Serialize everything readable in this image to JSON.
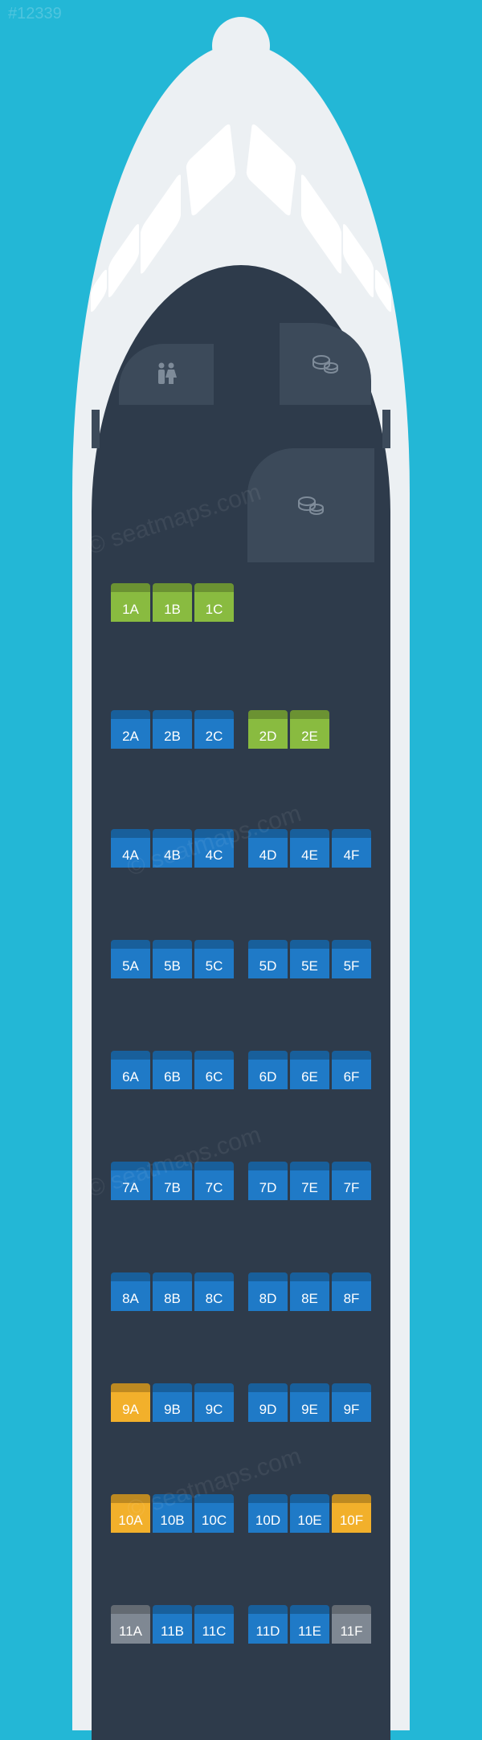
{
  "watermark_id": "#12339",
  "watermark_text": "© seatmaps.com",
  "seat_colors": {
    "blue": "#1f7ac7",
    "green": "#89bb40",
    "yellow": "#f2b02b",
    "gray": "#7f8893"
  },
  "bg_color": "#23b7d6",
  "fuselage_outer_color": "#ecf0f3",
  "fuselage_inner_color": "#2e3b4b",
  "amenity_color": "#3c4a5a",
  "seat_font_size": 17,
  "row_spacing": 138,
  "rows": [
    {
      "gap_after": 110,
      "left": [
        {
          "l": "1A",
          "c": "green"
        },
        {
          "l": "1B",
          "c": "green"
        },
        {
          "l": "1C",
          "c": "green"
        }
      ],
      "right": []
    },
    {
      "gap_after": 100,
      "left": [
        {
          "l": "2A",
          "c": "blue"
        },
        {
          "l": "2B",
          "c": "blue"
        },
        {
          "l": "2C",
          "c": "blue"
        }
      ],
      "right": [
        {
          "l": "2D",
          "c": "green"
        },
        {
          "l": "2E",
          "c": "green"
        },
        null
      ]
    },
    {
      "left": [
        {
          "l": "4A",
          "c": "blue"
        },
        {
          "l": "4B",
          "c": "blue"
        },
        {
          "l": "4C",
          "c": "blue"
        }
      ],
      "right": [
        {
          "l": "4D",
          "c": "blue"
        },
        {
          "l": "4E",
          "c": "blue"
        },
        {
          "l": "4F",
          "c": "blue"
        }
      ]
    },
    {
      "left": [
        {
          "l": "5A",
          "c": "blue"
        },
        {
          "l": "5B",
          "c": "blue"
        },
        {
          "l": "5C",
          "c": "blue"
        }
      ],
      "right": [
        {
          "l": "5D",
          "c": "blue"
        },
        {
          "l": "5E",
          "c": "blue"
        },
        {
          "l": "5F",
          "c": "blue"
        }
      ]
    },
    {
      "left": [
        {
          "l": "6A",
          "c": "blue"
        },
        {
          "l": "6B",
          "c": "blue"
        },
        {
          "l": "6C",
          "c": "blue"
        }
      ],
      "right": [
        {
          "l": "6D",
          "c": "blue"
        },
        {
          "l": "6E",
          "c": "blue"
        },
        {
          "l": "6F",
          "c": "blue"
        }
      ]
    },
    {
      "left": [
        {
          "l": "7A",
          "c": "blue"
        },
        {
          "l": "7B",
          "c": "blue"
        },
        {
          "l": "7C",
          "c": "blue"
        }
      ],
      "right": [
        {
          "l": "7D",
          "c": "blue"
        },
        {
          "l": "7E",
          "c": "blue"
        },
        {
          "l": "7F",
          "c": "blue"
        }
      ]
    },
    {
      "left": [
        {
          "l": "8A",
          "c": "blue"
        },
        {
          "l": "8B",
          "c": "blue"
        },
        {
          "l": "8C",
          "c": "blue"
        }
      ],
      "right": [
        {
          "l": "8D",
          "c": "blue"
        },
        {
          "l": "8E",
          "c": "blue"
        },
        {
          "l": "8F",
          "c": "blue"
        }
      ]
    },
    {
      "left": [
        {
          "l": "9A",
          "c": "yellow"
        },
        {
          "l": "9B",
          "c": "blue"
        },
        {
          "l": "9C",
          "c": "blue"
        }
      ],
      "right": [
        {
          "l": "9D",
          "c": "blue"
        },
        {
          "l": "9E",
          "c": "blue"
        },
        {
          "l": "9F",
          "c": "blue"
        }
      ]
    },
    {
      "left": [
        {
          "l": "10A",
          "c": "yellow"
        },
        {
          "l": "10B",
          "c": "blue"
        },
        {
          "l": "10C",
          "c": "blue"
        }
      ],
      "right": [
        {
          "l": "10D",
          "c": "blue"
        },
        {
          "l": "10E",
          "c": "blue"
        },
        {
          "l": "10F",
          "c": "yellow"
        }
      ]
    },
    {
      "left": [
        {
          "l": "11A",
          "c": "gray"
        },
        {
          "l": "11B",
          "c": "blue"
        },
        {
          "l": "11C",
          "c": "blue"
        }
      ],
      "right": [
        {
          "l": "11D",
          "c": "blue"
        },
        {
          "l": "11E",
          "c": "blue"
        },
        {
          "l": "11F",
          "c": "gray"
        }
      ]
    }
  ]
}
